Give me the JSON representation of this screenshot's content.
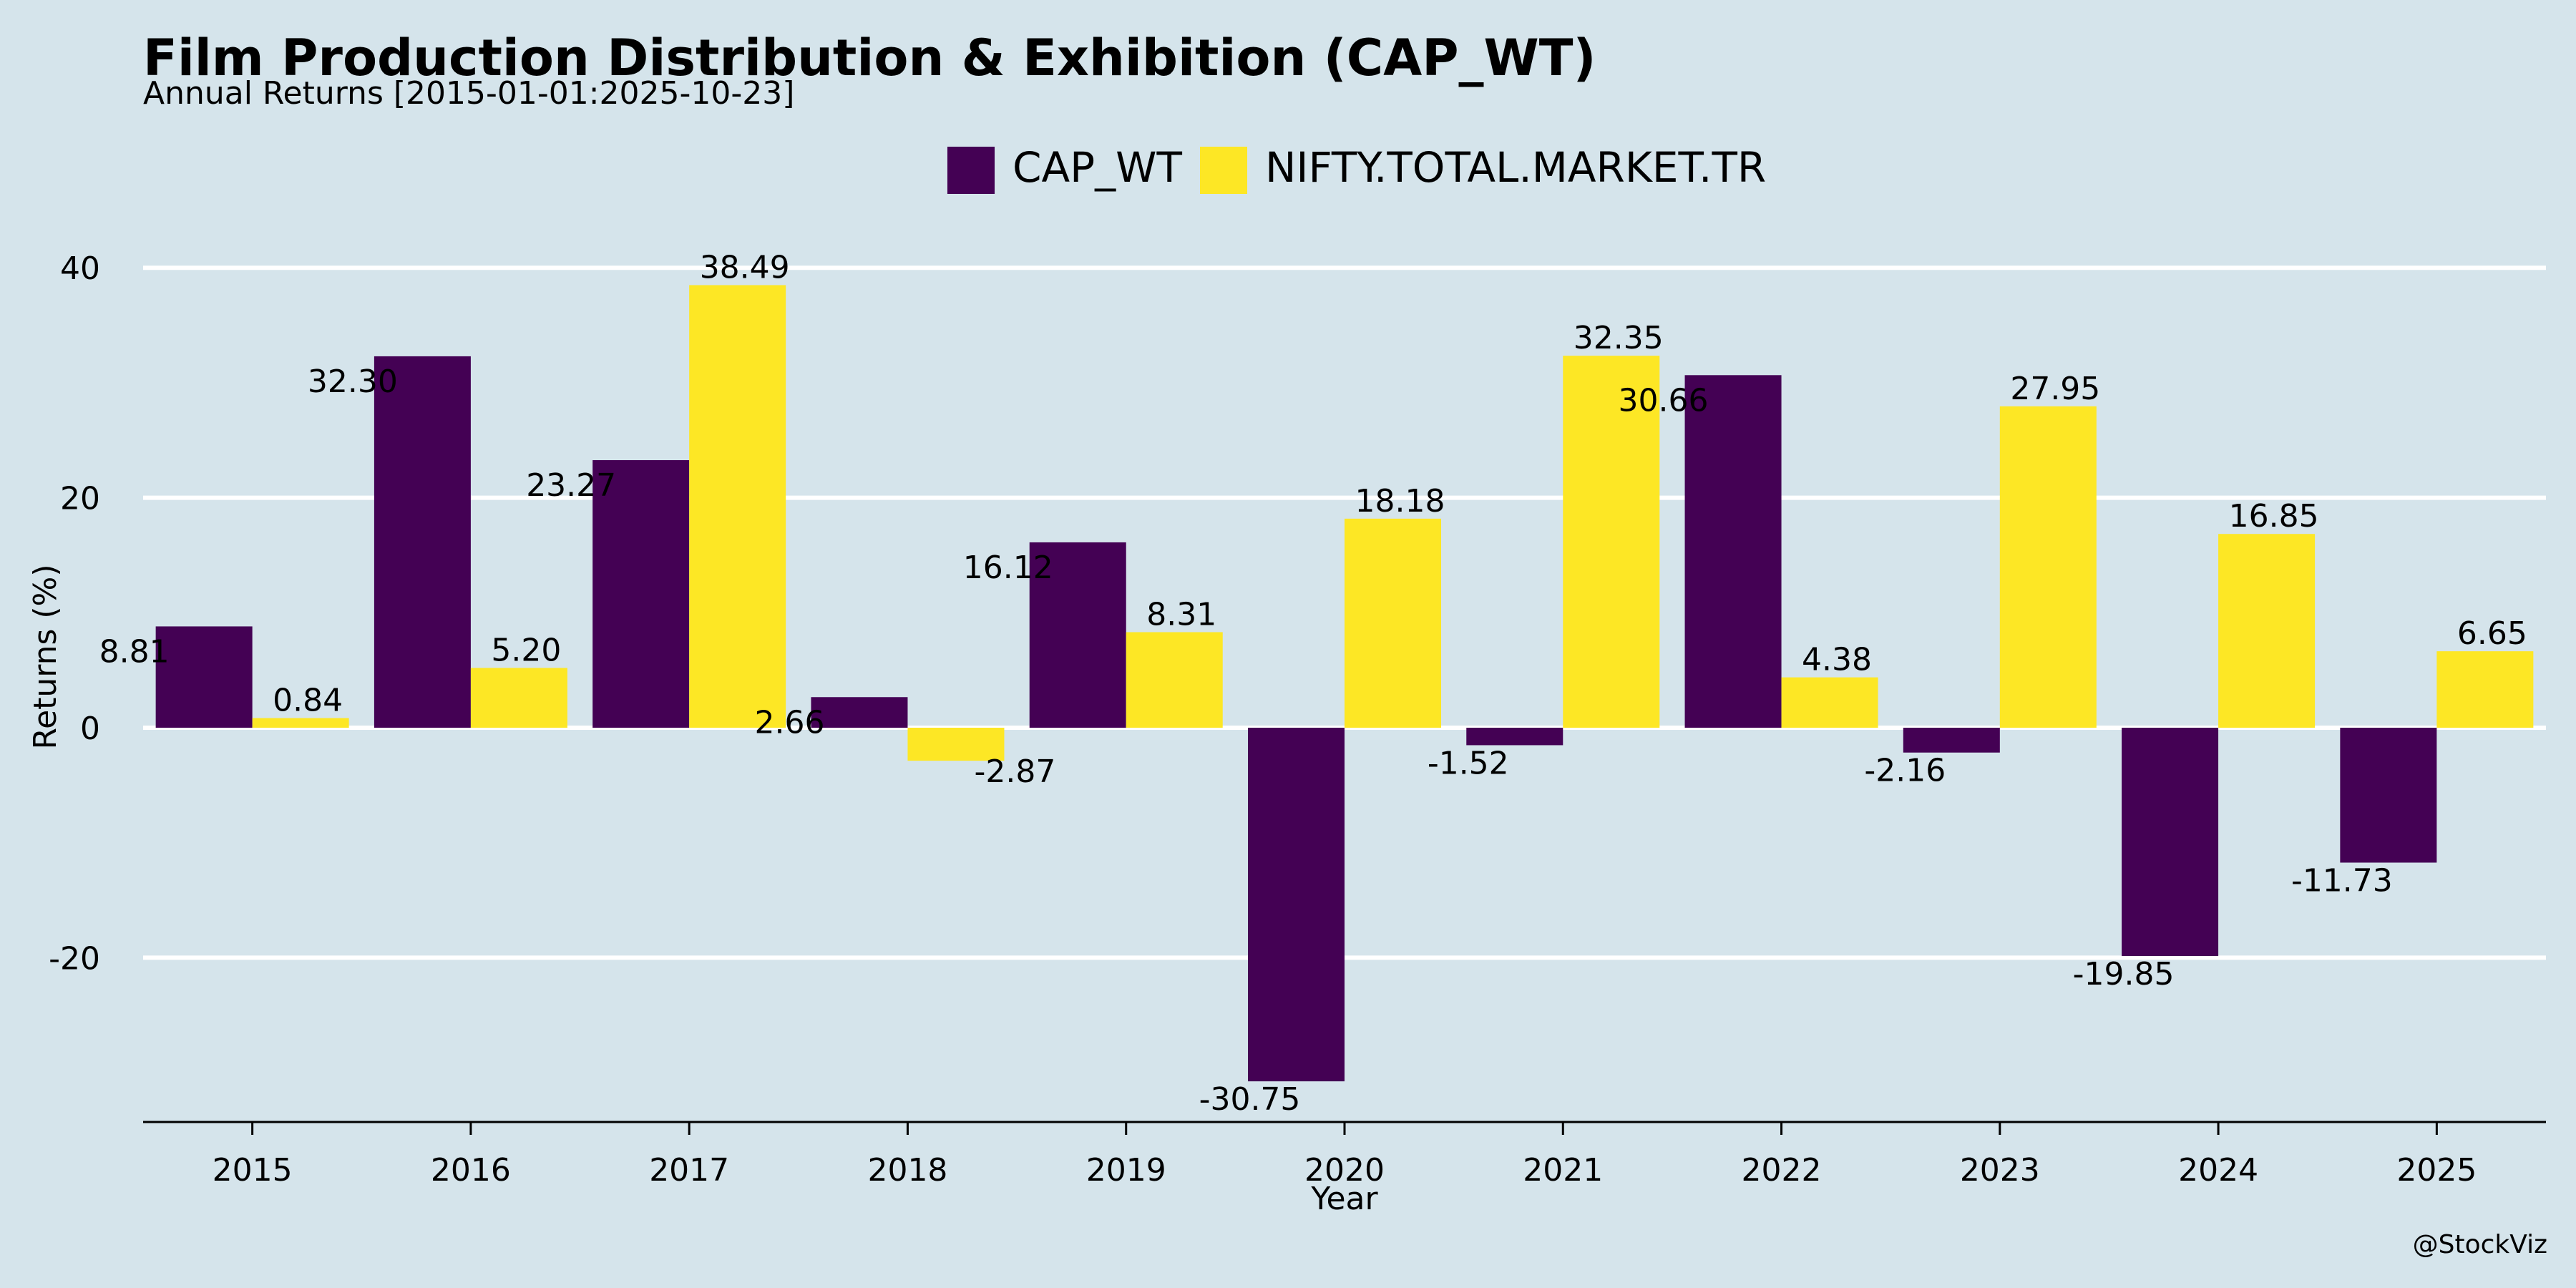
{
  "header": {
    "title": "Film Production Distribution & Exhibition (CAP_WT)",
    "subtitle": "Annual Returns [2015-01-01:2025-10-23]"
  },
  "watermark": "@StockViz",
  "colors": {
    "background": "#d5e4eb",
    "grid": "#ffffff",
    "axis": "#000000"
  },
  "chart_data": {
    "type": "bar",
    "xlabel": "Year",
    "ylabel": "Returns (%)",
    "categories": [
      "2015",
      "2016",
      "2017",
      "2018",
      "2019",
      "2020",
      "2021",
      "2022",
      "2023",
      "2024",
      "2025"
    ],
    "series": [
      {
        "name": "CAP_WT",
        "color": "#440154",
        "values": [
          8.81,
          32.3,
          23.27,
          2.66,
          16.12,
          -30.75,
          -1.52,
          30.66,
          -2.16,
          -19.85,
          -11.73
        ]
      },
      {
        "name": "NIFTY.TOTAL.MARKET.TR",
        "color": "#fde725",
        "values": [
          0.84,
          5.2,
          38.49,
          -2.87,
          8.31,
          18.18,
          32.35,
          4.38,
          27.95,
          16.85,
          6.65
        ]
      }
    ],
    "value_labels": {
      "CAP_WT": [
        "8.81",
        "32.30",
        "23.27",
        "2.66",
        "16.12",
        "-30.75",
        "-1.52",
        "30.66",
        "-2.16",
        "-19.85",
        "-11.73"
      ],
      "NIFTY.TOTAL.MARKET.TR": [
        "0.84",
        "5.20",
        "38.49",
        "-2.87",
        "8.31",
        "18.18",
        "32.35",
        "4.38",
        "27.95",
        "16.85",
        "6.65"
      ]
    },
    "yticks": [
      -20,
      0,
      20,
      40
    ],
    "ytick_labels": [
      "-20",
      "0",
      "20",
      "40"
    ],
    "ylim": [
      -34.3,
      40
    ],
    "grid": true,
    "legend": "top-center"
  }
}
